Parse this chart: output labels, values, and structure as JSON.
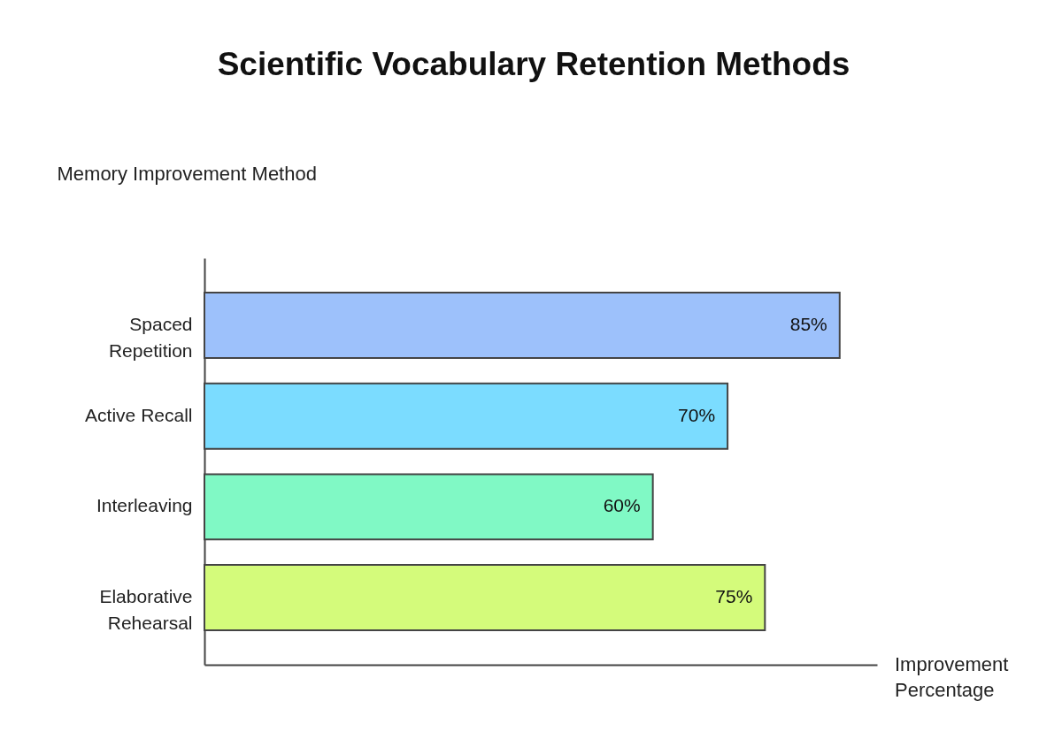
{
  "chart_data": {
    "type": "bar",
    "orientation": "horizontal",
    "title": "Scientific Vocabulary Retention Methods",
    "xlabel": "Improvement Percentage",
    "ylabel": "Memory Improvement Method",
    "categories": [
      "Spaced Repetition",
      "Active Recall",
      "Interleaving",
      "Elaborative Rehearsal"
    ],
    "values": [
      85,
      70,
      60,
      75
    ],
    "value_labels": [
      "85%",
      "70%",
      "60%",
      "75%"
    ],
    "colors": [
      "#9dc1fb",
      "#7bdcff",
      "#80f9c5",
      "#d4fb7b"
    ],
    "tick_labels": "y",
    "grid": false,
    "legend": false
  }
}
